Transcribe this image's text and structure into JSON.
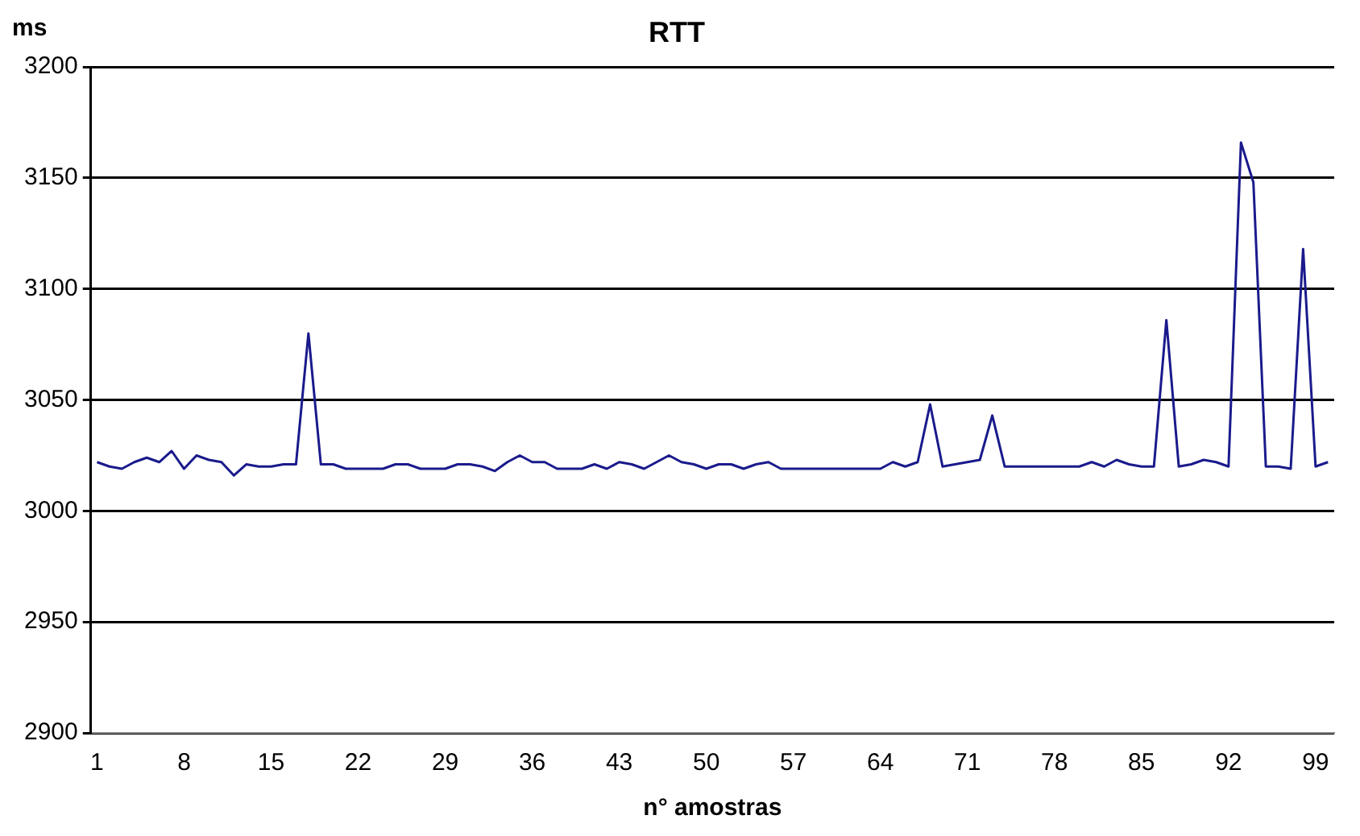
{
  "chart_data": {
    "type": "line",
    "title": "RTT",
    "xlabel": "n° amostras",
    "ylabel": "ms",
    "categories": [
      "1",
      null,
      null,
      null,
      null,
      null,
      null,
      "8",
      null,
      null,
      null,
      null,
      null,
      null,
      "15",
      null,
      null,
      null,
      null,
      null,
      null,
      "22",
      null,
      null,
      null,
      null,
      null,
      null,
      "29",
      null,
      null,
      null,
      null,
      null,
      null,
      "36",
      null,
      null,
      null,
      null,
      null,
      null,
      "43",
      null,
      null,
      null,
      null,
      null,
      null,
      "50",
      null,
      null,
      null,
      null,
      null,
      null,
      "57",
      null,
      null,
      null,
      null,
      null,
      null,
      "64",
      null,
      null,
      null,
      null,
      null,
      null,
      "71",
      null,
      null,
      null,
      null,
      null,
      null,
      "78",
      null,
      null,
      null,
      null,
      null,
      null,
      "85",
      null,
      null,
      null,
      null,
      null,
      null,
      "92",
      null,
      null,
      null,
      null,
      null,
      null,
      "99",
      null
    ],
    "series": [
      {
        "color": "#1a1a8c",
        "values": [
          3022,
          3020,
          3019,
          3022,
          3024,
          3022,
          3027,
          3019,
          3025,
          3023,
          3022,
          3016,
          3021,
          3020,
          3020,
          3021,
          3021,
          3080,
          3021,
          3021,
          3019,
          3019,
          3019,
          3019,
          3021,
          3021,
          3019,
          3019,
          3019,
          3021,
          3021,
          3020,
          3018,
          3022,
          3025,
          3022,
          3022,
          3019,
          3019,
          3019,
          3021,
          3019,
          3022,
          3021,
          3019,
          3022,
          3025,
          3022,
          3021,
          3019,
          3021,
          3021,
          3019,
          3021,
          3022,
          3019,
          3019,
          3019,
          3019,
          3019,
          3019,
          3019,
          3019,
          3019,
          3022,
          3020,
          3022,
          3048,
          3020,
          3021,
          3022,
          3023,
          3043,
          3020,
          3020,
          3020,
          3020,
          3020,
          3020,
          3020,
          3022,
          3020,
          3023,
          3021,
          3020,
          3020,
          3086,
          3020,
          3021,
          3023,
          3022,
          3020,
          3166,
          3148,
          3020,
          3020,
          3019,
          3118,
          3020,
          3022
        ]
      }
    ],
    "ylim": [
      2900,
      3200
    ],
    "yticks": [
      2900,
      2950,
      3000,
      3050,
      3100,
      3150,
      3200
    ],
    "grid": "y",
    "legend": false,
    "marker": "none",
    "line_style": "solid"
  }
}
